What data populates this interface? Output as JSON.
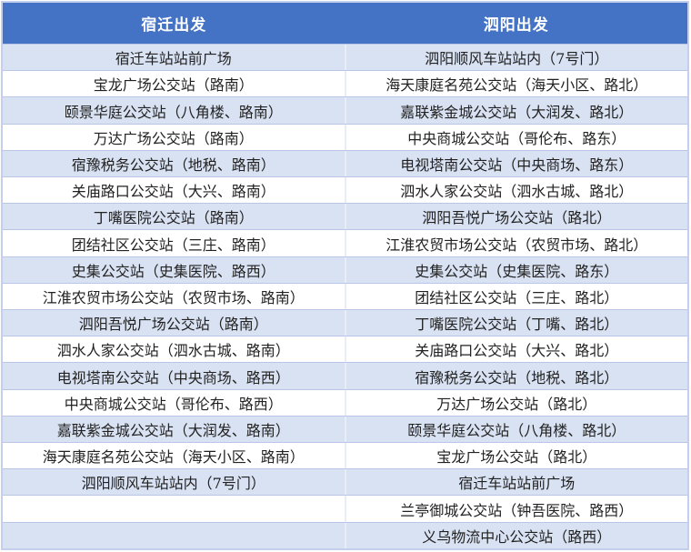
{
  "table": {
    "colors": {
      "header_bg": "#4472C4",
      "header_text": "#FFFFFF",
      "row_odd_bg": "#D9E2F3",
      "row_even_bg": "#FFFFFF",
      "outer_border": "#C3CFEC",
      "row_border": "#B9C6E8",
      "column_divider": "#E9EDF7",
      "row_text": "#222222"
    },
    "columns": [
      {
        "header": "宿迁出发",
        "rows": [
          "宿迁车站站前广场",
          "宝龙广场公交站（路南）",
          "颐景华庭公交站（八角楼、路南）",
          "万达广场公交站（路南）",
          "宿豫税务公交站（地税、路南）",
          "关庙路口公交站（大兴、路南）",
          "丁嘴医院公交站（路南）",
          "团结社区公交站（三庄、路南）",
          "史集公交站（史集医院、路西）",
          "江淮农贸市场公交站（农贸市场、路南）",
          "泗阳吾悦广场公交站（路南）",
          "泗水人家公交站（泗水古城、路南）",
          "电视塔南公交站（中央商场、路西）",
          "中央商城公交站（哥伦布、路西）",
          "嘉联紫金城公交站（大润发、路南）",
          "海天康庭名苑公交站（海天小区、路南）",
          "泗阳顺风车站站内（7号门）",
          "",
          ""
        ]
      },
      {
        "header": "泗阳出发",
        "rows": [
          "泗阳顺风车站站内（7号门）",
          "海天康庭名苑公交站（海天小区、路北）",
          "嘉联紫金城公交站（大润发、路北）",
          "中央商城公交站（哥伦布、路东）",
          "电视塔南公交站（中央商场、路东）",
          "泗水人家公交站（泗水古城、路北）",
          "泗阳吾悦广场公交站（路北）",
          "江淮农贸市场公交站（农贸市场、路北）",
          "史集公交站（史集医院、路东）",
          "团结社区公交站（三庄、路北）",
          "丁嘴医院公交站（丁嘴、路北）",
          "关庙路口公交站（大兴、路北）",
          "宿豫税务公交站（地税、路北）",
          "万达广场公交站（路北）",
          "颐景华庭公交站（八角楼、路北）",
          "宝龙广场公交站（路北）",
          "宿迁车站站前广场",
          "兰亭御城公交站（钟吾医院、路西）",
          "义乌物流中心公交站（路西）"
        ]
      }
    ]
  }
}
